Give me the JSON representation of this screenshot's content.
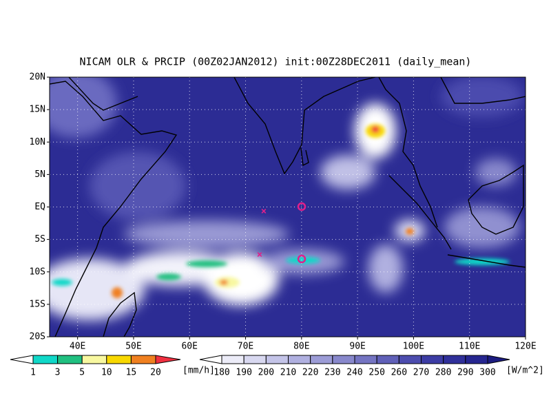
{
  "title": "NICAM OLR & PRCIP (00Z02JAN2012) init:00Z28DEC2011 (daily_mean)",
  "map": {
    "lat_labels": [
      "20N",
      "15N",
      "10N",
      "5N",
      "EQ",
      "5S",
      "10S",
      "15S",
      "20S"
    ],
    "lon_labels": [
      "40E",
      "50E",
      "60E",
      "70E",
      "80E",
      "90E",
      "100E",
      "110E",
      "120E"
    ]
  },
  "legends": [
    {
      "labels": [
        "1",
        "3",
        "5",
        "10",
        "15",
        "20"
      ],
      "unit": "[mm/h]",
      "colors": [
        "#ffffff",
        "#10d8c8",
        "#20c080",
        "#f8f8a0",
        "#f8d800",
        "#f08020",
        "#f03040"
      ]
    },
    {
      "labels": [
        "180",
        "190",
        "200",
        "210",
        "220",
        "230",
        "240",
        "250",
        "260",
        "270",
        "280",
        "290",
        "300"
      ],
      "unit": "[W/m^2]",
      "colors": [
        "#ffffff",
        "#ececf8",
        "#d8d8f0",
        "#c4c4e8",
        "#b0b0e0",
        "#9c9cd6",
        "#8888cc",
        "#7474c2",
        "#6060b8",
        "#4c4cae",
        "#3c3ca4",
        "#30309a",
        "#262690",
        "#1c1c80"
      ]
    }
  ]
}
